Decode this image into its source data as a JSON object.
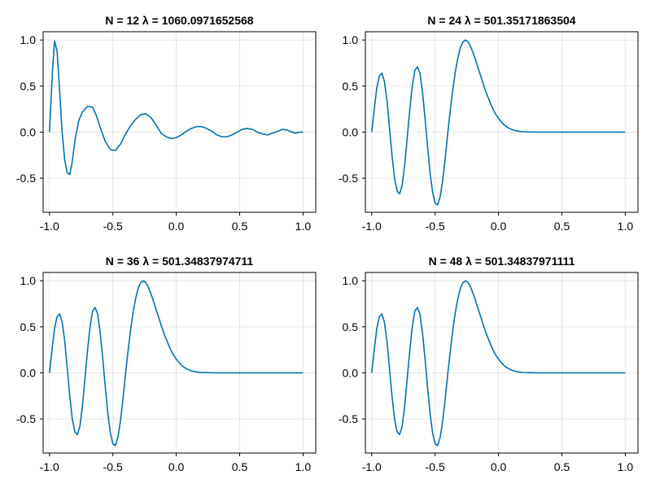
{
  "chart_data": [
    {
      "type": "line",
      "title": "N = 12     λ = 1060.0971652568",
      "xlim": [
        -1.05,
        1.1
      ],
      "ylim": [
        -0.87,
        1.09
      ],
      "xticks": [
        -1.0,
        -0.5,
        0.0,
        0.5,
        1.0
      ],
      "xtick_labels": [
        "-1.0",
        "-0.5",
        "0.0",
        "0.5",
        "1.0"
      ],
      "yticks": [
        -0.5,
        0.0,
        0.5,
        1.0
      ],
      "ytick_labels": [
        "-0.5",
        "0.0",
        "0.5",
        "1.0"
      ],
      "grid": true,
      "series": [
        {
          "color": "#0072b2",
          "x": [
            -1.0,
            -0.975,
            -0.96,
            -0.94,
            -0.92,
            -0.9,
            -0.88,
            -0.86,
            -0.84,
            -0.82,
            -0.8,
            -0.77,
            -0.74,
            -0.7,
            -0.66,
            -0.63,
            -0.6,
            -0.56,
            -0.52,
            -0.48,
            -0.44,
            -0.4,
            -0.36,
            -0.32,
            -0.28,
            -0.24,
            -0.2,
            -0.16,
            -0.12,
            -0.08,
            -0.04,
            0.0,
            0.04,
            0.08,
            0.12,
            0.16,
            0.2,
            0.24,
            0.28,
            0.32,
            0.36,
            0.4,
            0.44,
            0.48,
            0.52,
            0.56,
            0.6,
            0.64,
            0.68,
            0.72,
            0.76,
            0.8,
            0.84,
            0.88,
            0.91,
            0.94,
            0.97,
            1.0
          ],
          "y": [
            0.0,
            0.7,
            0.99,
            0.88,
            0.45,
            0.0,
            -0.3,
            -0.44,
            -0.46,
            -0.32,
            -0.1,
            0.12,
            0.22,
            0.28,
            0.27,
            0.18,
            0.05,
            -0.1,
            -0.19,
            -0.2,
            -0.13,
            -0.02,
            0.07,
            0.14,
            0.19,
            0.2,
            0.16,
            0.08,
            -0.01,
            -0.05,
            -0.07,
            -0.06,
            -0.03,
            0.01,
            0.04,
            0.06,
            0.06,
            0.04,
            0.01,
            -0.03,
            -0.05,
            -0.05,
            -0.03,
            0.0,
            0.03,
            0.04,
            0.03,
            0.0,
            -0.02,
            -0.03,
            -0.01,
            0.01,
            0.03,
            0.02,
            0.0,
            -0.01,
            0.0,
            0.0
          ]
        }
      ]
    },
    {
      "type": "line",
      "title": "N = 24     λ = 501.35171863504",
      "xlim": [
        -1.05,
        1.1
      ],
      "ylim": [
        -0.87,
        1.09
      ],
      "xticks": [
        -1.0,
        -0.5,
        0.0,
        0.5,
        1.0
      ],
      "xtick_labels": [
        "-1.0",
        "-0.5",
        "0.0",
        "0.5",
        "1.0"
      ],
      "yticks": [
        -0.5,
        0.0,
        0.5,
        1.0
      ],
      "ytick_labels": [
        "-0.5",
        "0.0",
        "0.5",
        "1.0"
      ],
      "grid": true,
      "series": [
        {
          "color": "#0072b2",
          "x": [
            -1.0,
            -0.98,
            -0.96,
            -0.94,
            -0.92,
            -0.9,
            -0.88,
            -0.86,
            -0.84,
            -0.82,
            -0.8,
            -0.78,
            -0.76,
            -0.74,
            -0.72,
            -0.7,
            -0.68,
            -0.66,
            -0.64,
            -0.62,
            -0.6,
            -0.58,
            -0.56,
            -0.54,
            -0.52,
            -0.5,
            -0.48,
            -0.46,
            -0.44,
            -0.42,
            -0.4,
            -0.38,
            -0.36,
            -0.34,
            -0.32,
            -0.3,
            -0.28,
            -0.26,
            -0.24,
            -0.22,
            -0.2,
            -0.18,
            -0.16,
            -0.14,
            -0.12,
            -0.1,
            -0.08,
            -0.06,
            -0.04,
            -0.02,
            0.0,
            0.02,
            0.04,
            0.06,
            0.08,
            0.1,
            0.12,
            0.14,
            0.16,
            0.18,
            0.2,
            0.24,
            0.28,
            0.32,
            0.36,
            0.4,
            0.45,
            0.5,
            0.6,
            0.7,
            0.8,
            0.9,
            1.0
          ],
          "y": [
            0.0,
            0.25,
            0.48,
            0.61,
            0.64,
            0.55,
            0.35,
            0.05,
            -0.25,
            -0.5,
            -0.64,
            -0.67,
            -0.58,
            -0.36,
            -0.06,
            0.24,
            0.5,
            0.67,
            0.71,
            0.64,
            0.44,
            0.16,
            -0.15,
            -0.44,
            -0.65,
            -0.77,
            -0.79,
            -0.7,
            -0.52,
            -0.28,
            -0.01,
            0.24,
            0.47,
            0.66,
            0.81,
            0.92,
            0.98,
            1.0,
            0.98,
            0.93,
            0.86,
            0.78,
            0.69,
            0.61,
            0.52,
            0.44,
            0.37,
            0.3,
            0.24,
            0.19,
            0.15,
            0.115,
            0.085,
            0.062,
            0.045,
            0.032,
            0.022,
            0.015,
            0.01,
            0.006,
            0.004,
            0.002,
            0.001,
            0.0,
            0.0,
            0.0,
            0.0,
            0.0,
            0.0,
            0.0,
            0.0,
            0.0,
            0.0
          ]
        }
      ]
    },
    {
      "type": "line",
      "title": "N = 36     λ = 501.34837974711",
      "xlim": [
        -1.05,
        1.1
      ],
      "ylim": [
        -0.87,
        1.09
      ],
      "xticks": [
        -1.0,
        -0.5,
        0.0,
        0.5,
        1.0
      ],
      "xtick_labels": [
        "-1.0",
        "-0.5",
        "0.0",
        "0.5",
        "1.0"
      ],
      "yticks": [
        -0.5,
        0.0,
        0.5,
        1.0
      ],
      "ytick_labels": [
        "-0.5",
        "0.0",
        "0.5",
        "1.0"
      ],
      "grid": true,
      "series": [
        {
          "color": "#0072b2",
          "x": [
            -1.0,
            -0.98,
            -0.96,
            -0.94,
            -0.92,
            -0.9,
            -0.88,
            -0.86,
            -0.84,
            -0.82,
            -0.8,
            -0.78,
            -0.76,
            -0.74,
            -0.72,
            -0.7,
            -0.68,
            -0.66,
            -0.64,
            -0.62,
            -0.6,
            -0.58,
            -0.56,
            -0.54,
            -0.52,
            -0.5,
            -0.48,
            -0.46,
            -0.44,
            -0.42,
            -0.4,
            -0.38,
            -0.36,
            -0.34,
            -0.32,
            -0.3,
            -0.28,
            -0.26,
            -0.24,
            -0.22,
            -0.2,
            -0.18,
            -0.16,
            -0.14,
            -0.12,
            -0.1,
            -0.08,
            -0.06,
            -0.04,
            -0.02,
            0.0,
            0.02,
            0.04,
            0.06,
            0.08,
            0.1,
            0.12,
            0.14,
            0.16,
            0.18,
            0.2,
            0.24,
            0.28,
            0.32,
            0.36,
            0.4,
            0.45,
            0.5,
            0.6,
            0.7,
            0.8,
            0.9,
            1.0
          ],
          "y": [
            0.0,
            0.25,
            0.48,
            0.61,
            0.64,
            0.55,
            0.35,
            0.05,
            -0.25,
            -0.5,
            -0.64,
            -0.67,
            -0.58,
            -0.36,
            -0.06,
            0.24,
            0.5,
            0.67,
            0.71,
            0.64,
            0.44,
            0.16,
            -0.15,
            -0.44,
            -0.65,
            -0.77,
            -0.79,
            -0.7,
            -0.52,
            -0.28,
            -0.01,
            0.24,
            0.47,
            0.66,
            0.81,
            0.92,
            0.98,
            1.0,
            0.98,
            0.93,
            0.86,
            0.78,
            0.69,
            0.61,
            0.52,
            0.44,
            0.37,
            0.3,
            0.24,
            0.19,
            0.15,
            0.115,
            0.085,
            0.062,
            0.045,
            0.032,
            0.022,
            0.015,
            0.01,
            0.006,
            0.004,
            0.002,
            0.001,
            0.0,
            0.0,
            0.0,
            0.0,
            0.0,
            0.0,
            0.0,
            0.0,
            0.0,
            0.0
          ]
        }
      ]
    },
    {
      "type": "line",
      "title": "N = 48     λ = 501.34837971111",
      "xlim": [
        -1.05,
        1.1
      ],
      "ylim": [
        -0.87,
        1.09
      ],
      "xticks": [
        -1.0,
        -0.5,
        0.0,
        0.5,
        1.0
      ],
      "xtick_labels": [
        "-1.0",
        "-0.5",
        "0.0",
        "0.5",
        "1.0"
      ],
      "yticks": [
        -0.5,
        0.0,
        0.5,
        1.0
      ],
      "ytick_labels": [
        "-0.5",
        "0.0",
        "0.5",
        "1.0"
      ],
      "grid": true,
      "series": [
        {
          "color": "#0072b2",
          "x": [
            -1.0,
            -0.98,
            -0.96,
            -0.94,
            -0.92,
            -0.9,
            -0.88,
            -0.86,
            -0.84,
            -0.82,
            -0.8,
            -0.78,
            -0.76,
            -0.74,
            -0.72,
            -0.7,
            -0.68,
            -0.66,
            -0.64,
            -0.62,
            -0.6,
            -0.58,
            -0.56,
            -0.54,
            -0.52,
            -0.5,
            -0.48,
            -0.46,
            -0.44,
            -0.42,
            -0.4,
            -0.38,
            -0.36,
            -0.34,
            -0.32,
            -0.3,
            -0.28,
            -0.26,
            -0.24,
            -0.22,
            -0.2,
            -0.18,
            -0.16,
            -0.14,
            -0.12,
            -0.1,
            -0.08,
            -0.06,
            -0.04,
            -0.02,
            0.0,
            0.02,
            0.04,
            0.06,
            0.08,
            0.1,
            0.12,
            0.14,
            0.16,
            0.18,
            0.2,
            0.24,
            0.28,
            0.32,
            0.36,
            0.4,
            0.45,
            0.5,
            0.6,
            0.7,
            0.8,
            0.9,
            1.0
          ],
          "y": [
            0.0,
            0.25,
            0.48,
            0.61,
            0.64,
            0.55,
            0.35,
            0.05,
            -0.25,
            -0.5,
            -0.64,
            -0.67,
            -0.58,
            -0.36,
            -0.06,
            0.24,
            0.5,
            0.67,
            0.71,
            0.64,
            0.44,
            0.16,
            -0.15,
            -0.44,
            -0.65,
            -0.77,
            -0.79,
            -0.7,
            -0.52,
            -0.28,
            -0.01,
            0.24,
            0.47,
            0.66,
            0.81,
            0.92,
            0.98,
            1.0,
            0.98,
            0.93,
            0.86,
            0.78,
            0.69,
            0.61,
            0.52,
            0.44,
            0.37,
            0.3,
            0.24,
            0.19,
            0.15,
            0.115,
            0.085,
            0.062,
            0.045,
            0.032,
            0.022,
            0.015,
            0.01,
            0.006,
            0.004,
            0.002,
            0.001,
            0.0,
            0.0,
            0.0,
            0.0,
            0.0,
            0.0,
            0.0,
            0.0,
            0.0,
            0.0
          ]
        }
      ]
    }
  ]
}
